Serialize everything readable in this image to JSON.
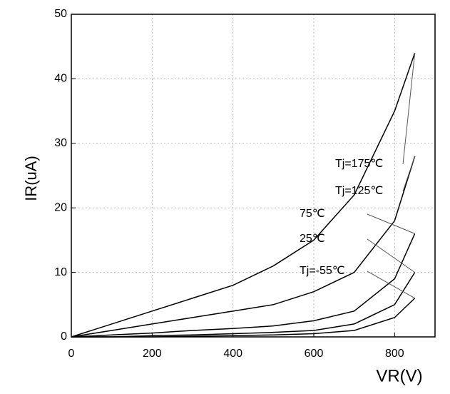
{
  "chart_data": {
    "type": "line",
    "x_label": "VR(V)",
    "y_label": "IR(uA)",
    "x": [
      0,
      100,
      200,
      300,
      400,
      500,
      600,
      700,
      800,
      850
    ],
    "series": [
      {
        "name": "Tj=175℃",
        "color": "#000000",
        "values": [
          0,
          2,
          4,
          6,
          8,
          11,
          15,
          22,
          35,
          44
        ]
      },
      {
        "name": "Tj=125℃",
        "color": "#000000",
        "values": [
          0,
          1,
          2,
          3,
          4,
          5,
          7,
          10,
          18,
          28
        ]
      },
      {
        "name": "75℃",
        "color": "#000000",
        "values": [
          0,
          0.3,
          0.6,
          1,
          1.3,
          1.7,
          2.5,
          4,
          9,
          16
        ]
      },
      {
        "name": "25℃",
        "color": "#000000",
        "values": [
          0,
          0,
          0.2,
          0.3,
          0.5,
          0.7,
          1,
          2,
          5,
          10
        ]
      },
      {
        "name": "Tj=-55℃",
        "color": "#000000",
        "values": [
          0,
          0,
          0,
          0.1,
          0.2,
          0.3,
          0.5,
          1,
          3,
          6
        ]
      }
    ],
    "xlim": [
      0,
      900
    ],
    "xticks": [
      0,
      200,
      400,
      600,
      800
    ],
    "ylim": [
      0,
      50
    ],
    "yticks": [
      0,
      10,
      20,
      30,
      40,
      50
    ],
    "grid": true
  }
}
